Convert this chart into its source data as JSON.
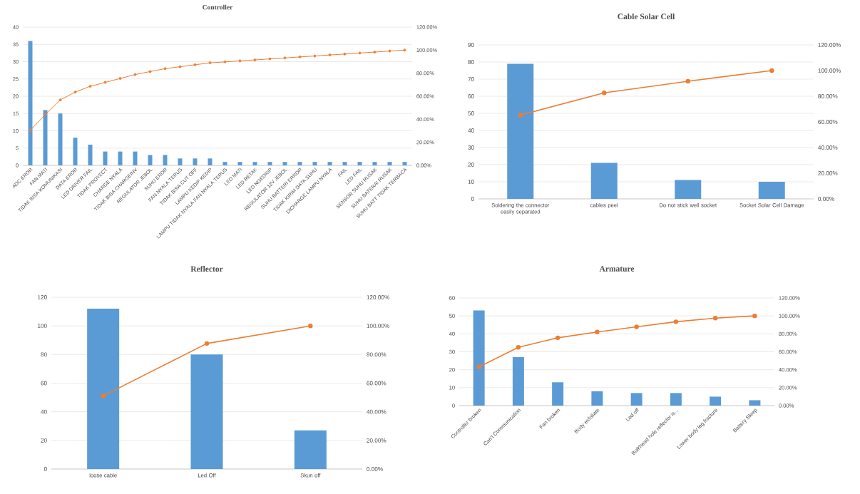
{
  "chart_data": [
    {
      "type": "bar",
      "title": "Controller",
      "grid": "y",
      "categories": [
        "ADC EROR",
        "FAN MATI",
        "TIDAK BISA KOMUNIKASI",
        "DATA EROR",
        "LED DRIVER FAIL",
        "TIDAK PROYECT",
        "CHARGE NYALA",
        "TIDAK BISA CHARGEINV",
        "REGULATOR JEBOL",
        "SUHU EROR",
        "FAN NYALA TERUS",
        "TIDAK BISA CUT OFF",
        "LAMPU KEDIP KEDIP",
        "LAMPU TIDAK NYALA FAN NYALA TERUS",
        "LED MATI",
        "LED RETAK",
        "LED NGEDRIP",
        "REGULATOR 12V JEBOL",
        "SUHU BATTERI ERROR",
        "TIDAK KIRIM DATA  SUHU",
        "DICHARGE LAMPU NYALA",
        "FAIL",
        "LED FAIL",
        "SENSOR SUHU RUSAK",
        "SUHU BATERAI RUSAK",
        "SUHU BATT TIDAK TERBACA"
      ],
      "series": [
        {
          "color": "#5b9bd5",
          "values": [
            36,
            16,
            15,
            8,
            6,
            4,
            4,
            4,
            3,
            3,
            2,
            2,
            2,
            1,
            1,
            1,
            1,
            1,
            1,
            1,
            1,
            1,
            1,
            1,
            1,
            1
          ]
        },
        {
          "type": "line",
          "axis": "y2",
          "color": "#ed7d31",
          "marker": "circle",
          "values": [
            30.5,
            44.1,
            56.8,
            63.6,
            68.6,
            72.0,
            75.4,
            78.8,
            81.4,
            83.9,
            85.6,
            87.3,
            89.0,
            89.8,
            90.7,
            91.5,
            92.4,
            93.2,
            94.1,
            94.9,
            95.8,
            96.6,
            97.5,
            98.3,
            99.2,
            100
          ]
        }
      ],
      "ylim": [
        0,
        40
      ],
      "yticks": [
        0,
        5,
        10,
        15,
        20,
        25,
        30,
        35,
        40
      ],
      "y2lim": [
        0,
        120
      ],
      "y2ticks": [
        {
          "value": 0,
          "label": "0.00%"
        },
        {
          "value": 20,
          "label": "20.00%"
        },
        {
          "value": 40,
          "label": "40.00%"
        },
        {
          "value": 60,
          "label": "60.00%"
        },
        {
          "value": 80,
          "label": "80.00%"
        },
        {
          "value": 100,
          "label": "100.00%"
        },
        {
          "value": 120,
          "label": "120.00%"
        }
      ]
    },
    {
      "type": "bar",
      "title": "Cable Solar Cell",
      "grid": "y",
      "categories": [
        "Soldering the connector easily separated",
        "cables peel",
        "Do not stick well socket",
        "Socket Solar Cell Damage"
      ],
      "series": [
        {
          "color": "#5b9bd5",
          "values": [
            79,
            21,
            11,
            10
          ]
        },
        {
          "type": "line",
          "axis": "y2",
          "color": "#ed7d31",
          "marker": "circle",
          "values": [
            65.3,
            82.6,
            91.7,
            100
          ]
        }
      ],
      "ylim": [
        0,
        90
      ],
      "yticks": [
        0,
        10,
        20,
        30,
        40,
        50,
        60,
        70,
        80,
        90
      ],
      "y2lim": [
        0,
        120
      ],
      "y2ticks": [
        {
          "value": 0,
          "label": "0.00%"
        },
        {
          "value": 20,
          "label": "20.00%"
        },
        {
          "value": 40,
          "label": "40.00%"
        },
        {
          "value": 60,
          "label": "60.00%"
        },
        {
          "value": 80,
          "label": "80.00%"
        },
        {
          "value": 100,
          "label": "100.00%"
        },
        {
          "value": 120,
          "label": "120.00%"
        }
      ]
    },
    {
      "type": "bar",
      "title": "Reflector",
      "grid": "y",
      "categories": [
        "loose cable",
        "Led Off",
        "Skun off"
      ],
      "series": [
        {
          "color": "#5b9bd5",
          "values": [
            112,
            80,
            27
          ]
        },
        {
          "type": "line",
          "axis": "y2",
          "color": "#ed7d31",
          "marker": "circle",
          "values": [
            51.1,
            87.7,
            100
          ]
        }
      ],
      "ylim": [
        0,
        120
      ],
      "yticks": [
        0,
        20,
        40,
        60,
        80,
        100,
        120
      ],
      "y2lim": [
        0,
        120
      ],
      "y2ticks": [
        {
          "value": 0,
          "label": "0.00%"
        },
        {
          "value": 20,
          "label": "20.00%"
        },
        {
          "value": 40,
          "label": "40.00%"
        },
        {
          "value": 60,
          "label": "60.00%"
        },
        {
          "value": 80,
          "label": "80.00%"
        },
        {
          "value": 100,
          "label": "100.00%"
        },
        {
          "value": 120,
          "label": "120.00%"
        }
      ]
    },
    {
      "type": "bar",
      "title": "Armature",
      "grid": "y",
      "categories": [
        "Controller broken",
        "Can't Communication",
        "Fan broken",
        "Body exfoliate",
        "Led off",
        "Bulkhead hole reflector is...",
        "Lower body leg fracture",
        "Battery Sleep"
      ],
      "series": [
        {
          "color": "#5b9bd5",
          "values": [
            53,
            27,
            13,
            8,
            7,
            7,
            5,
            3
          ]
        },
        {
          "type": "line",
          "axis": "y2",
          "color": "#ed7d31",
          "marker": "circle",
          "values": [
            43.1,
            65.0,
            75.6,
            82.1,
            87.8,
            93.5,
            97.6,
            100
          ]
        }
      ],
      "ylim": [
        0,
        60
      ],
      "yticks": [
        0,
        10,
        20,
        30,
        40,
        50,
        60
      ],
      "y2lim": [
        0,
        120
      ],
      "y2ticks": [
        {
          "value": 0,
          "label": "0.00%"
        },
        {
          "value": 20,
          "label": "20.00%"
        },
        {
          "value": 40,
          "label": "40.00%"
        },
        {
          "value": 60,
          "label": "60.00%"
        },
        {
          "value": 80,
          "label": "80.00%"
        },
        {
          "value": 100,
          "label": "100.00%"
        },
        {
          "value": 120,
          "label": "120.00%"
        }
      ]
    }
  ]
}
